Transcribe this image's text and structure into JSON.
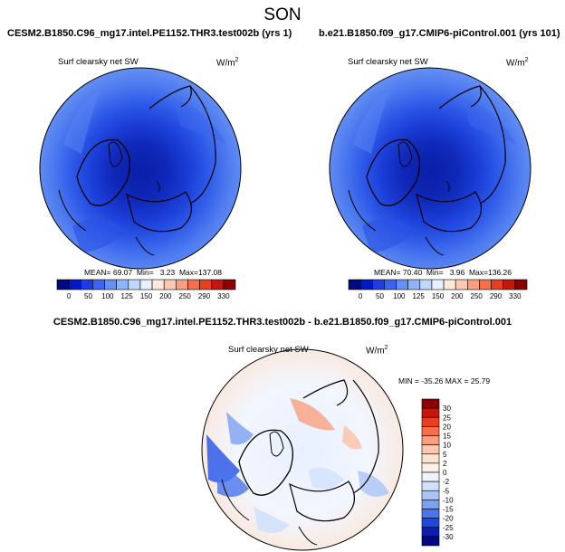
{
  "title": "SON",
  "panels": [
    {
      "case_name": "CESM2.B1850.C96_mg17.intel.PE1152.THR3.test002b (yrs 1)",
      "variable": "Surf clearsky net SW",
      "units": "W/m",
      "units_exp": "2",
      "mean_label": "MEAN=",
      "mean": "69.07",
      "min_label": "Min=",
      "min": "3.23",
      "max_label": "Max=",
      "max": "137.08"
    },
    {
      "case_name": "b.e21.B1850.f09_g17.CMIP6-piControl.001 (yrs 101)",
      "variable": "Surf clearsky net SW",
      "units": "W/m",
      "units_exp": "2",
      "mean_label": "MEAN=",
      "mean": "70.40",
      "min_label": "Min=",
      "min": "3.96",
      "max_label": "Max=",
      "max": "136.26"
    }
  ],
  "colorbar_main": {
    "ticks": [
      "0",
      "50",
      "100",
      "125",
      "150",
      "200",
      "250",
      "290",
      "330"
    ],
    "colors": [
      "#000a80",
      "#0019c8",
      "#1e3ce6",
      "#3c64f0",
      "#6490f5",
      "#8cb4fa",
      "#bed7fa",
      "#e6f0ff",
      "#fde8dc",
      "#fbc8b0",
      "#f8a07e",
      "#f56f4a",
      "#e8401e",
      "#c4170c",
      "#8c0000"
    ]
  },
  "difference": {
    "title": "CESM2.B1850.C96_mg17.intel.PE1152.THR3.test002b - b.e21.B1850.f09_g17.CMIP6-piControl.001",
    "variable": "Surf clearsky net SW",
    "units": "W/m",
    "units_exp": "2",
    "min_max_text": "MIN = -35.26 MAX =  25.79",
    "colorbar_ticks": [
      "30",
      "25",
      "20",
      "15",
      "10",
      "5",
      "2",
      "0",
      "-2",
      "-5",
      "-10",
      "-15",
      "-20",
      "-25",
      "-30"
    ],
    "colorbar_colors": [
      "#8c0000",
      "#c4170c",
      "#e8401e",
      "#f56f4a",
      "#f8a07e",
      "#fbc8b0",
      "#fde3d2",
      "#fdf0e6",
      "#eef3ff",
      "#d2e1fb",
      "#aac4f7",
      "#7aa0f2",
      "#4a74ec",
      "#1e46e0",
      "#0a1eb4",
      "#000a80"
    ]
  }
}
